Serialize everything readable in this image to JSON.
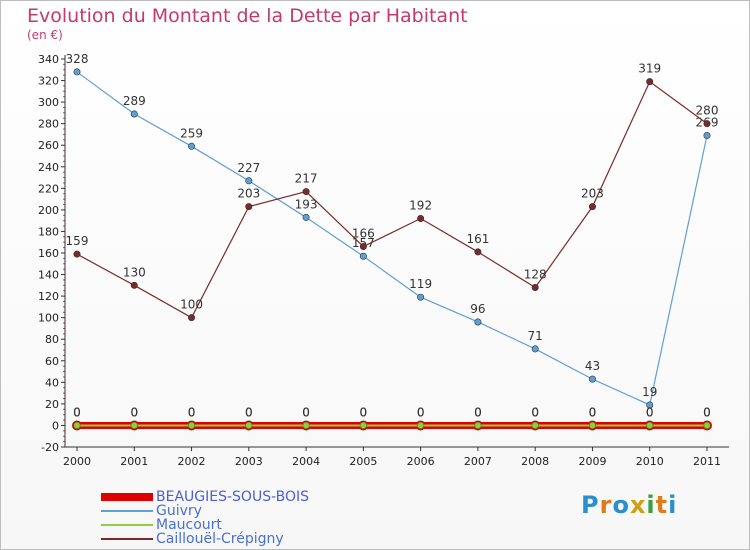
{
  "title": "Evolution du Montant de la Dette par Habitant",
  "subtitle": "(en €)",
  "logo": "Proxiti",
  "chart_data": {
    "type": "line",
    "x": [
      "2000",
      "2001",
      "2002",
      "2003",
      "2004",
      "2005",
      "2006",
      "2007",
      "2008",
      "2009",
      "2010",
      "2011"
    ],
    "ylim": [
      -20,
      340
    ],
    "yticks": [
      -20,
      0,
      20,
      40,
      60,
      80,
      100,
      120,
      140,
      160,
      180,
      200,
      220,
      240,
      260,
      280,
      300,
      320,
      340
    ],
    "series": [
      {
        "name": "BEAUGIES-SOUS-BOIS",
        "color": "#e00000",
        "values": [
          0,
          0,
          0,
          0,
          0,
          0,
          0,
          0,
          0,
          0,
          0,
          0
        ]
      },
      {
        "name": "Guivry",
        "color": "#5f9fd4",
        "values": [
          328,
          289,
          259,
          227,
          193,
          157,
          119,
          96,
          71,
          43,
          19,
          269
        ]
      },
      {
        "name": "Maucourt",
        "color": "#8fcf3f",
        "values": [
          0,
          0,
          0,
          0,
          0,
          0,
          0,
          0,
          0,
          0,
          0,
          0
        ]
      },
      {
        "name": "Caillouël-Crépigny",
        "color": "#7a2a2a",
        "values": [
          159,
          130,
          100,
          203,
          217,
          166,
          192,
          161,
          128,
          203,
          319,
          280
        ]
      }
    ]
  }
}
